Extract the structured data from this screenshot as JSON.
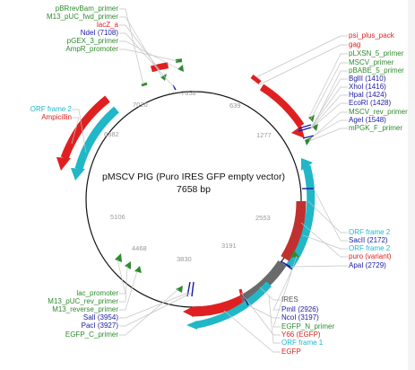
{
  "plasmid": {
    "name": "pMSCV PIG (Puro IRES GFP empty vector)",
    "length_label": "7658 bp",
    "total_bp": 7658
  },
  "colors": {
    "backbone": "#111111",
    "primer": "#2e8b2e",
    "promoter": "#2e8b2e",
    "gene": "#e02020",
    "orf": "#21b7c7",
    "enzyme": "#1a1aa0",
    "misc": "#777777",
    "leader": "#c4c4c4"
  },
  "ticks": [
    "7658",
    "639",
    "1277",
    "2553",
    "3191",
    "3830",
    "4468",
    "5106",
    "6382",
    "7020"
  ],
  "labels": {
    "pBRrevBam_primer": "pBRrevBam_primer",
    "M13_pUC_fwd_primer": "M13_pUC_fwd_primer",
    "lacZ_a": "lacZ_a",
    "NdeI": "NdeI (7108)",
    "pGEX_3_primer": "pGEX_3_primer",
    "AmpR_promoter": "AmpR_promoter",
    "orf_frame_2_left": "ORF frame 2",
    "ampicillin": "Ampicillin",
    "psi_plus_pack": "psi_plus_pack",
    "gag": "gag",
    "pLXSN_5_primer": "pLXSN_5_primer",
    "MSCV_primer": "MSCV_primer",
    "pBABE_5_primer": "pBABE_5_primer",
    "BglII": "BglII (1410)",
    "XhoI": "XhoI (1416)",
    "HpaI": "HpaI (1424)",
    "EcoRI": "EcoRI (1428)",
    "MSCV_rev_primer": "MSCV_rev_primer",
    "AgeI": "AgeI (1548)",
    "mPGK_F_primer": "mPGK_F_primer",
    "orf_frame_2_right": "ORF frame 2",
    "SacII": "SacII (2172)",
    "orf_frame_2_right_b": "ORF frame 2",
    "puro": "puro (variant)",
    "ApaI": "ApaI (2729)",
    "lac_promoter": "lac_promoter",
    "M13_pUC_rev_primer": "M13_pUC_rev_primer",
    "M13_reverse_primer": "M13_reverse_primer",
    "SalI": "SalI (3954)",
    "PacI": "PacI (3927)",
    "EGFP_C_primer": "EGFP_C_primer",
    "IRES": "IRES",
    "PmlI": "PmlI (2926)",
    "NcoI": "NcoI (3197)",
    "EGFP_N_primer": "EGFP_N_primer",
    "Y66": "Y66 (EGFP)",
    "orf_frame_1": "ORF frame 1",
    "EGFP": "EGFP"
  }
}
